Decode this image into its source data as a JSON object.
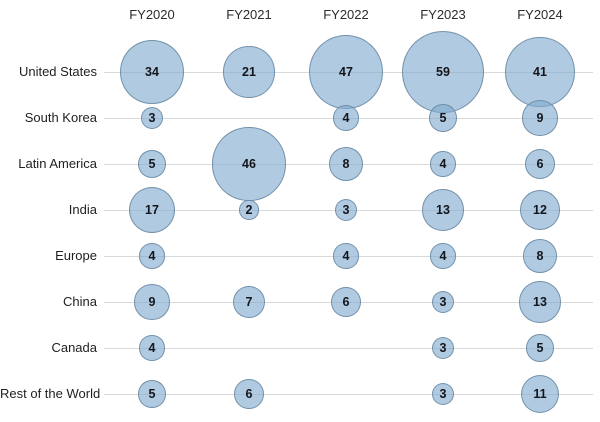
{
  "chart_data": {
    "type": "bubble",
    "description": "Bubble matrix of values by region and fiscal year; bubble area encodes value",
    "columns": [
      "FY2020",
      "FY2021",
      "FY2022",
      "FY2023",
      "FY2024"
    ],
    "series": [
      {
        "name": "United States",
        "values": [
          34,
          21,
          47,
          59,
          41
        ]
      },
      {
        "name": "South Korea",
        "values": [
          3,
          null,
          4,
          5,
          9
        ]
      },
      {
        "name": "Latin America",
        "values": [
          5,
          46,
          8,
          4,
          6
        ]
      },
      {
        "name": "India",
        "values": [
          17,
          2,
          3,
          13,
          12
        ]
      },
      {
        "name": "Europe",
        "values": [
          4,
          null,
          4,
          4,
          8
        ]
      },
      {
        "name": "China",
        "values": [
          9,
          7,
          6,
          3,
          13
        ]
      },
      {
        "name": "Canada",
        "values": [
          4,
          null,
          null,
          3,
          5
        ]
      },
      {
        "name": "Rest of the World",
        "values": [
          5,
          6,
          null,
          3,
          11
        ]
      }
    ],
    "title": "",
    "xlabel": "",
    "ylabel": "",
    "legend_position": "none",
    "grid": "horizontal row lines"
  },
  "style": {
    "background": "#ffffff",
    "bubble_fill": "rgba(127,170,206,0.62)",
    "bubble_border": "rgba(104,136,161,0.85)",
    "value_color": "#14161c",
    "label_color": "#1f1f1f",
    "gridline_color": "#d9d9d9"
  }
}
